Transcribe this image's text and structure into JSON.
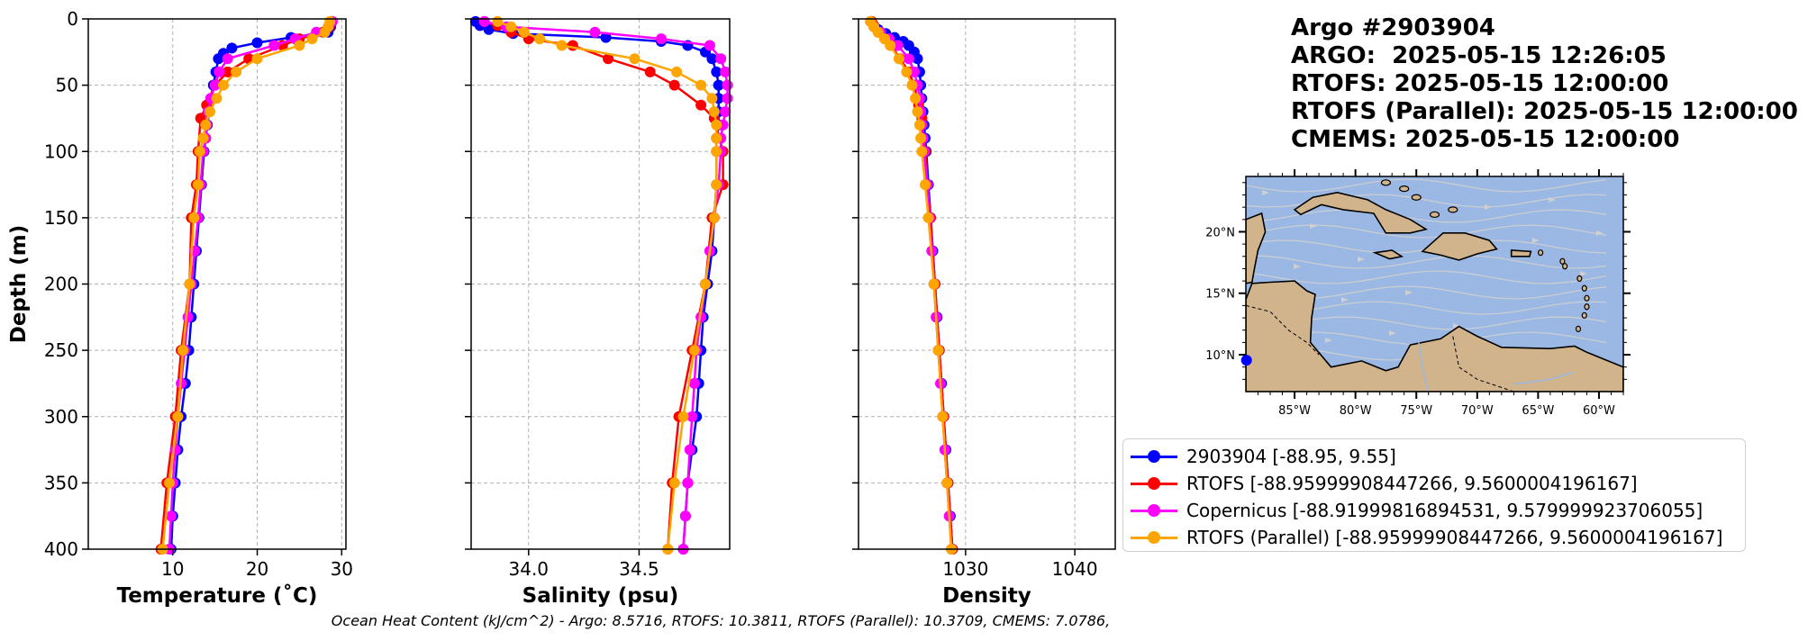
{
  "title_lines": [
    "Argo #2903904",
    "ARGO:  2025-05-15 12:26:05",
    "RTOFS: 2025-05-15 12:00:00",
    "RTOFS (Parallel): 2025-05-15 12:00:00",
    "CMEMS: 2025-05-15 12:00:00"
  ],
  "footer": "Ocean Heat Content (kJ/cm^2) - Argo: 8.5716,  RTOFS: 10.3811,  RTOFS (Parallel): 10.3709,  CMEMS: 7.0786,",
  "colors": {
    "argo": "#0000ff",
    "rtofs": "#ff0000",
    "copernicus": "#ff00ff",
    "rtofs_parallel": "#ffa500",
    "ocean": "#9ab8e3",
    "land": "#d2b48c",
    "streamline": "#cfcfcf"
  },
  "legend": [
    {
      "label": "2903904 [-88.95, 9.55]",
      "color": "#0000ff"
    },
    {
      "label": "RTOFS [-88.95999908447266, 9.5600004196167]",
      "color": "#ff0000"
    },
    {
      "label": "Copernicus [-88.91999816894531, 9.579999923706055]",
      "color": "#ff00ff"
    },
    {
      "label": "RTOFS (Parallel) [-88.95999908447266, 9.5600004196167]",
      "color": "#ffa500"
    }
  ],
  "chart_data": [
    {
      "type": "line",
      "xlabel": "Temperature (˚C)",
      "ylabel": "Depth (m)",
      "xlim": [
        0,
        30.5
      ],
      "ylim": [
        400,
        0
      ],
      "y_inverted": true,
      "xticks": [
        10,
        20,
        30
      ],
      "yticks": [
        0,
        50,
        100,
        150,
        200,
        250,
        300,
        350,
        400
      ],
      "grid": true,
      "series": [
        {
          "key": "argo",
          "depth": [
            2,
            6,
            10,
            14,
            18,
            22,
            26,
            30,
            40,
            50,
            60,
            70,
            80,
            90,
            100,
            125,
            150,
            175,
            200,
            225,
            250,
            275,
            300,
            325,
            350,
            375,
            400
          ],
          "values": [
            28.8,
            28.7,
            28.4,
            24,
            20,
            17,
            16,
            15.4,
            15.1,
            14.8,
            14.5,
            14.3,
            14.1,
            13.9,
            13.7,
            13.4,
            13.1,
            12.8,
            12.5,
            12.2,
            11.9,
            11.5,
            11,
            10.6,
            10.3,
            10,
            9.8
          ]
        },
        {
          "key": "rtofs",
          "depth": [
            2,
            6,
            10,
            15,
            20,
            30,
            40,
            50,
            65,
            75,
            100,
            125,
            150,
            200,
            250,
            300,
            350,
            400
          ],
          "values": [
            28.7,
            28.5,
            27.8,
            25,
            23,
            19,
            16.5,
            15,
            14,
            13.3,
            13,
            12.8,
            12.2,
            12,
            11,
            10.3,
            9.3,
            8.6
          ]
        },
        {
          "key": "copernicus",
          "depth": [
            2,
            6,
            10,
            15,
            20,
            30,
            40,
            50,
            60,
            70,
            80,
            90,
            100,
            125,
            150,
            175,
            200,
            225,
            250,
            275,
            300,
            325,
            350,
            375,
            400
          ],
          "values": [
            28.9,
            28.4,
            27,
            24.5,
            22,
            16.5,
            15.5,
            15,
            14.5,
            14.2,
            14,
            13.9,
            13.6,
            13.3,
            13,
            12.6,
            12.2,
            11.8,
            11.4,
            11,
            10.6,
            10.3,
            10,
            9.8,
            9.6
          ]
        },
        {
          "key": "rtofs_parallel",
          "depth": [
            2,
            6,
            10,
            15,
            20,
            30,
            40,
            50,
            60,
            70,
            80,
            90,
            100,
            125,
            150,
            200,
            250,
            300,
            350,
            400
          ],
          "values": [
            28.6,
            28.4,
            28,
            26.5,
            25,
            20,
            17.5,
            16,
            15.2,
            14.4,
            13.9,
            13.6,
            13.2,
            13,
            12.5,
            12,
            11.2,
            10.6,
            9.6,
            8.8
          ]
        }
      ]
    },
    {
      "type": "line",
      "xlabel": "Salinity (psu)",
      "xlim": [
        33.74,
        34.91
      ],
      "ylim": [
        400,
        0
      ],
      "y_inverted": true,
      "xticks": [
        34.0,
        34.5
      ],
      "xtick_labels": [
        "34.0",
        "34.5"
      ],
      "grid": true,
      "series": [
        {
          "key": "argo",
          "depth": [
            2,
            5,
            8,
            11,
            14,
            17,
            20,
            25,
            30,
            40,
            50,
            60,
            70,
            80,
            90,
            100,
            125,
            150,
            175,
            200,
            225,
            250,
            275,
            300,
            325,
            350,
            375,
            400
          ],
          "values": [
            33.76,
            33.78,
            33.82,
            33.93,
            34.35,
            34.6,
            34.72,
            34.8,
            34.83,
            34.85,
            34.86,
            34.86,
            34.86,
            34.86,
            34.85,
            34.85,
            34.85,
            34.84,
            34.83,
            34.81,
            34.79,
            34.78,
            34.77,
            34.76,
            34.74,
            34.72,
            34.71,
            34.7
          ]
        },
        {
          "key": "rtofs",
          "depth": [
            2,
            5,
            10,
            15,
            20,
            30,
            40,
            50,
            65,
            75,
            100,
            125,
            150,
            200,
            250,
            300,
            350,
            400
          ],
          "values": [
            33.8,
            33.86,
            33.92,
            34.0,
            34.2,
            34.36,
            34.55,
            34.66,
            34.78,
            34.84,
            34.88,
            34.88,
            34.83,
            34.8,
            34.74,
            34.68,
            34.65,
            34.63
          ]
        },
        {
          "key": "copernicus",
          "depth": [
            2,
            6,
            10,
            15,
            20,
            30,
            40,
            50,
            60,
            70,
            80,
            90,
            100,
            125,
            150,
            175,
            200,
            225,
            250,
            275,
            300,
            325,
            350,
            375,
            400
          ],
          "values": [
            33.8,
            33.9,
            34.3,
            34.6,
            34.82,
            34.87,
            34.89,
            34.9,
            34.9,
            34.89,
            34.88,
            34.87,
            34.87,
            34.86,
            34.84,
            34.82,
            34.8,
            34.78,
            34.76,
            34.75,
            34.74,
            34.73,
            34.72,
            34.71,
            34.7
          ]
        },
        {
          "key": "rtofs_parallel",
          "depth": [
            2,
            6,
            10,
            15,
            20,
            30,
            40,
            50,
            60,
            70,
            80,
            90,
            100,
            125,
            150,
            200,
            250,
            300,
            350,
            400
          ],
          "values": [
            33.86,
            33.92,
            33.98,
            34.05,
            34.15,
            34.48,
            34.67,
            34.78,
            34.83,
            34.84,
            34.85,
            34.85,
            34.85,
            34.85,
            34.84,
            34.8,
            34.75,
            34.7,
            34.66,
            34.63
          ]
        }
      ]
    },
    {
      "type": "line",
      "xlabel": "Density",
      "xlim": [
        1020.2,
        1043.7
      ],
      "ylim": [
        400,
        0
      ],
      "y_inverted": true,
      "xticks": [
        1030,
        1040
      ],
      "xtick_labels": [
        "1030",
        "1040"
      ],
      "grid": true,
      "series": [
        {
          "key": "argo",
          "depth": [
            2,
            5,
            8,
            11,
            14,
            17,
            20,
            25,
            30,
            40,
            50,
            60,
            70,
            80,
            90,
            100,
            125,
            150,
            175,
            200,
            225,
            250,
            275,
            300,
            325,
            350,
            375,
            400
          ],
          "values": [
            1021.4,
            1021.6,
            1022.0,
            1022.7,
            1023.5,
            1024.3,
            1024.8,
            1025.3,
            1025.6,
            1025.8,
            1025.9,
            1026.0,
            1026.1,
            1026.2,
            1026.3,
            1026.4,
            1026.6,
            1026.8,
            1027.0,
            1027.2,
            1027.4,
            1027.6,
            1027.8,
            1028.0,
            1028.2,
            1028.4,
            1028.6,
            1028.8
          ]
        },
        {
          "key": "rtofs",
          "depth": [
            2,
            5,
            10,
            15,
            20,
            30,
            40,
            50,
            65,
            75,
            100,
            125,
            150,
            200,
            250,
            300,
            350,
            400
          ],
          "values": [
            1021.4,
            1021.6,
            1022.0,
            1022.6,
            1023.2,
            1024.0,
            1024.8,
            1025.3,
            1025.7,
            1026.0,
            1026.3,
            1026.5,
            1026.8,
            1027.2,
            1027.6,
            1028.0,
            1028.4,
            1028.8
          ]
        },
        {
          "key": "copernicus",
          "depth": [
            2,
            6,
            10,
            15,
            20,
            30,
            40,
            50,
            60,
            70,
            80,
            90,
            100,
            125,
            150,
            175,
            200,
            225,
            250,
            275,
            300,
            325,
            350,
            375,
            400
          ],
          "values": [
            1021.3,
            1021.6,
            1022.2,
            1023.0,
            1023.8,
            1024.8,
            1025.3,
            1025.6,
            1025.8,
            1025.9,
            1026.0,
            1026.1,
            1026.2,
            1026.5,
            1026.7,
            1026.9,
            1027.1,
            1027.3,
            1027.5,
            1027.7,
            1027.9,
            1028.1,
            1028.3,
            1028.5,
            1028.7
          ]
        },
        {
          "key": "rtofs_parallel",
          "depth": [
            2,
            6,
            10,
            15,
            20,
            30,
            40,
            50,
            60,
            70,
            80,
            90,
            100,
            125,
            150,
            200,
            250,
            300,
            350,
            400
          ],
          "values": [
            1021.3,
            1021.6,
            1022.0,
            1022.6,
            1023.1,
            1023.9,
            1024.6,
            1025.1,
            1025.4,
            1025.6,
            1025.8,
            1025.9,
            1026.0,
            1026.3,
            1026.6,
            1027.1,
            1027.5,
            1027.9,
            1028.3,
            1028.7
          ]
        }
      ]
    },
    {
      "type": "map",
      "lon_range": [
        -89,
        -58
      ],
      "lat_range": [
        7,
        24.5
      ],
      "lon_ticks": [
        -85,
        -80,
        -75,
        -70,
        -65,
        -60
      ],
      "lon_tick_labels": [
        "85°W",
        "80°W",
        "75°W",
        "70°W",
        "65°W",
        "60°W"
      ],
      "lat_ticks": [
        10,
        15,
        20
      ],
      "lat_tick_labels": [
        "10°N",
        "15°N",
        "20°N"
      ],
      "marker": {
        "lon": -88.95,
        "lat": 9.55
      }
    }
  ]
}
